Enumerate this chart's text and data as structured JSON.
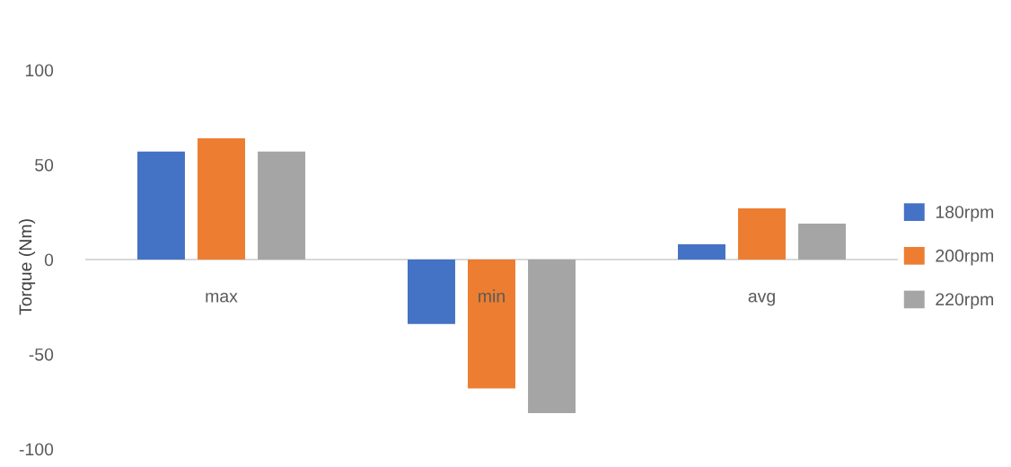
{
  "chart_data": {
    "type": "bar",
    "ylabel": "Torque (Nm)",
    "categories": [
      "max",
      "min",
      "avg"
    ],
    "series": [
      {
        "name": "180rpm",
        "color": "#4472c4",
        "values": [
          57,
          -34,
          8
        ]
      },
      {
        "name": "200rpm",
        "color": "#ed7d31",
        "values": [
          64,
          -68,
          27
        ]
      },
      {
        "name": "220rpm",
        "color": "#a5a5a5",
        "values": [
          57,
          -81,
          19
        ]
      }
    ],
    "ylim": [
      -100,
      100
    ],
    "yticks": [
      -100,
      -50,
      0,
      50,
      100
    ],
    "legend": "right"
  }
}
